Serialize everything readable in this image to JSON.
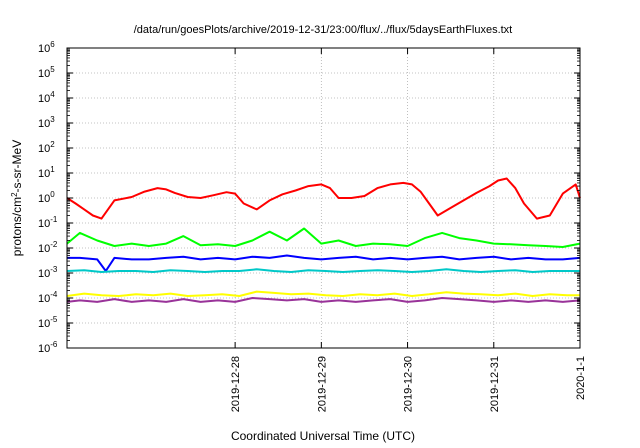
{
  "chart_data": {
    "type": "line",
    "title": "/data/run/goesPlots/archive/2019-12-31/23:00/flux/../flux/5daysEarthFluxes.txt",
    "xlabel": "Coordinated Universal Time (UTC)",
    "ylabel_parts": [
      "protons/cm",
      "2",
      "-s-sr-MeV"
    ],
    "x_range_days": [
      -0.95,
      5.0
    ],
    "y_scale": "log",
    "ylim": [
      1e-06,
      1000000.0
    ],
    "grid": true,
    "legend": "none",
    "x_ticks": [
      {
        "day": 1,
        "label": "2019-12-28"
      },
      {
        "day": 2,
        "label": "2019-12-29"
      },
      {
        "day": 3,
        "label": "2019-12-30"
      },
      {
        "day": 4,
        "label": "2019-12-31"
      },
      {
        "day": 5,
        "label": "2020-1-1"
      }
    ],
    "y_ticks": [
      {
        "exp": -6,
        "base": "10",
        "sup": "-6"
      },
      {
        "exp": -5,
        "base": "10",
        "sup": "-5"
      },
      {
        "exp": -4,
        "base": "10",
        "sup": "-4"
      },
      {
        "exp": -3,
        "base": "10",
        "sup": "-3"
      },
      {
        "exp": -2,
        "base": "10",
        "sup": "-2"
      },
      {
        "exp": -1,
        "base": "10",
        "sup": "-1"
      },
      {
        "exp": 0,
        "base": "10",
        "sup": "0"
      },
      {
        "exp": 1,
        "base": "10",
        "sup": "1"
      },
      {
        "exp": 2,
        "base": "10",
        "sup": "2"
      },
      {
        "exp": 3,
        "base": "10",
        "sup": "3"
      },
      {
        "exp": 4,
        "base": "10",
        "sup": "4"
      },
      {
        "exp": 5,
        "base": "10",
        "sup": "5"
      },
      {
        "exp": 6,
        "base": "10",
        "sup": "6"
      }
    ],
    "series": [
      {
        "color": "#ff0000",
        "x": [
          -0.95,
          -0.85,
          -0.75,
          -0.65,
          -0.55,
          -0.4,
          -0.2,
          -0.05,
          0.1,
          0.2,
          0.3,
          0.45,
          0.6,
          0.75,
          0.9,
          1.0,
          1.1,
          1.25,
          1.4,
          1.55,
          1.7,
          1.85,
          2.0,
          2.1,
          2.2,
          2.35,
          2.5,
          2.65,
          2.8,
          2.95,
          3.05,
          3.15,
          3.25,
          3.35,
          3.5,
          3.65,
          3.8,
          3.95,
          4.05,
          4.15,
          4.25,
          4.35,
          4.5,
          4.65,
          4.8,
          4.95,
          5.0
        ],
        "y": [
          1.0,
          0.6,
          0.35,
          0.2,
          0.15,
          0.8,
          1.1,
          1.8,
          2.5,
          2.2,
          1.6,
          1.1,
          1.0,
          1.3,
          1.7,
          1.5,
          0.6,
          0.35,
          0.8,
          1.4,
          2.0,
          3.0,
          3.5,
          2.5,
          1.0,
          1.0,
          1.2,
          2.5,
          3.5,
          4.0,
          3.5,
          1.8,
          0.6,
          0.2,
          0.4,
          0.8,
          1.6,
          3.0,
          5.0,
          6.0,
          2.5,
          0.6,
          0.15,
          0.2,
          1.5,
          3.5,
          1.0
        ]
      },
      {
        "color": "#00ff00",
        "x": [
          -0.95,
          -0.8,
          -0.6,
          -0.4,
          -0.2,
          0.0,
          0.2,
          0.4,
          0.6,
          0.8,
          1.0,
          1.2,
          1.4,
          1.6,
          1.8,
          2.0,
          2.2,
          2.4,
          2.6,
          2.8,
          3.0,
          3.2,
          3.4,
          3.6,
          3.8,
          4.0,
          4.2,
          4.4,
          4.6,
          4.8,
          5.0
        ],
        "y": [
          0.015,
          0.04,
          0.02,
          0.012,
          0.015,
          0.012,
          0.015,
          0.03,
          0.013,
          0.014,
          0.012,
          0.02,
          0.045,
          0.02,
          0.06,
          0.015,
          0.02,
          0.012,
          0.015,
          0.014,
          0.012,
          0.025,
          0.04,
          0.025,
          0.02,
          0.015,
          0.014,
          0.013,
          0.012,
          0.011,
          0.015
        ]
      },
      {
        "color": "#0000ff",
        "x": [
          -0.95,
          -0.8,
          -0.6,
          -0.5,
          -0.4,
          -0.2,
          0.0,
          0.2,
          0.4,
          0.6,
          0.8,
          1.0,
          1.2,
          1.4,
          1.6,
          1.8,
          2.0,
          2.2,
          2.4,
          2.6,
          2.8,
          3.0,
          3.2,
          3.4,
          3.6,
          3.8,
          4.0,
          4.2,
          4.4,
          4.6,
          4.8,
          5.0
        ],
        "y": [
          0.004,
          0.004,
          0.0035,
          0.0012,
          0.004,
          0.0035,
          0.0035,
          0.004,
          0.0045,
          0.0035,
          0.004,
          0.0035,
          0.0045,
          0.004,
          0.005,
          0.004,
          0.0035,
          0.004,
          0.0045,
          0.0035,
          0.004,
          0.0035,
          0.004,
          0.0045,
          0.0035,
          0.004,
          0.0045,
          0.0035,
          0.004,
          0.0035,
          0.0035,
          0.004
        ]
      },
      {
        "color": "#00c8c8",
        "x": [
          -0.95,
          -0.75,
          -0.55,
          -0.35,
          -0.15,
          0.05,
          0.25,
          0.45,
          0.65,
          0.85,
          1.05,
          1.25,
          1.45,
          1.65,
          1.85,
          2.05,
          2.25,
          2.45,
          2.65,
          2.85,
          3.05,
          3.25,
          3.45,
          3.65,
          3.85,
          4.05,
          4.25,
          4.45,
          4.65,
          4.85,
          5.0
        ],
        "y": [
          0.0012,
          0.0013,
          0.0011,
          0.0012,
          0.0012,
          0.0011,
          0.0013,
          0.0012,
          0.0011,
          0.0012,
          0.0012,
          0.0014,
          0.0012,
          0.0011,
          0.0013,
          0.0012,
          0.0011,
          0.0012,
          0.0013,
          0.0012,
          0.0011,
          0.0012,
          0.0014,
          0.0012,
          0.0011,
          0.0012,
          0.0013,
          0.0011,
          0.0012,
          0.0012,
          0.0012
        ]
      },
      {
        "color": "#ffff00",
        "x": [
          -0.95,
          -0.75,
          -0.55,
          -0.35,
          -0.15,
          0.05,
          0.25,
          0.45,
          0.65,
          0.85,
          1.05,
          1.25,
          1.45,
          1.65,
          1.85,
          2.05,
          2.25,
          2.45,
          2.65,
          2.85,
          3.05,
          3.25,
          3.45,
          3.65,
          3.85,
          4.05,
          4.25,
          4.45,
          4.65,
          4.85,
          5.0
        ],
        "y": [
          0.00012,
          0.00015,
          0.00013,
          0.00012,
          0.00014,
          0.00013,
          0.00015,
          0.00012,
          0.00013,
          0.00014,
          0.00012,
          0.00018,
          0.00016,
          0.00014,
          0.00015,
          0.00013,
          0.00012,
          0.00014,
          0.00013,
          0.00015,
          0.00012,
          0.00014,
          0.00017,
          0.00015,
          0.00014,
          0.00013,
          0.00015,
          0.00012,
          0.00014,
          0.00013,
          0.00013
        ]
      },
      {
        "color": "#993399",
        "x": [
          -0.95,
          -0.8,
          -0.6,
          -0.4,
          -0.2,
          0.0,
          0.2,
          0.4,
          0.6,
          0.8,
          1.0,
          1.2,
          1.4,
          1.6,
          1.8,
          2.0,
          2.2,
          2.4,
          2.6,
          2.8,
          3.0,
          3.2,
          3.4,
          3.6,
          3.8,
          4.0,
          4.2,
          4.4,
          4.6,
          4.8,
          5.0
        ],
        "y": [
          7e-05,
          8e-05,
          7e-05,
          9e-05,
          7e-05,
          8e-05,
          7e-05,
          9e-05,
          7e-05,
          8e-05,
          7e-05,
          0.0001,
          9e-05,
          8e-05,
          9e-05,
          7e-05,
          8e-05,
          7e-05,
          8e-05,
          9e-05,
          7e-05,
          8e-05,
          0.0001,
          9e-05,
          8e-05,
          7e-05,
          8e-05,
          7e-05,
          8e-05,
          7e-05,
          8e-05
        ]
      }
    ]
  }
}
